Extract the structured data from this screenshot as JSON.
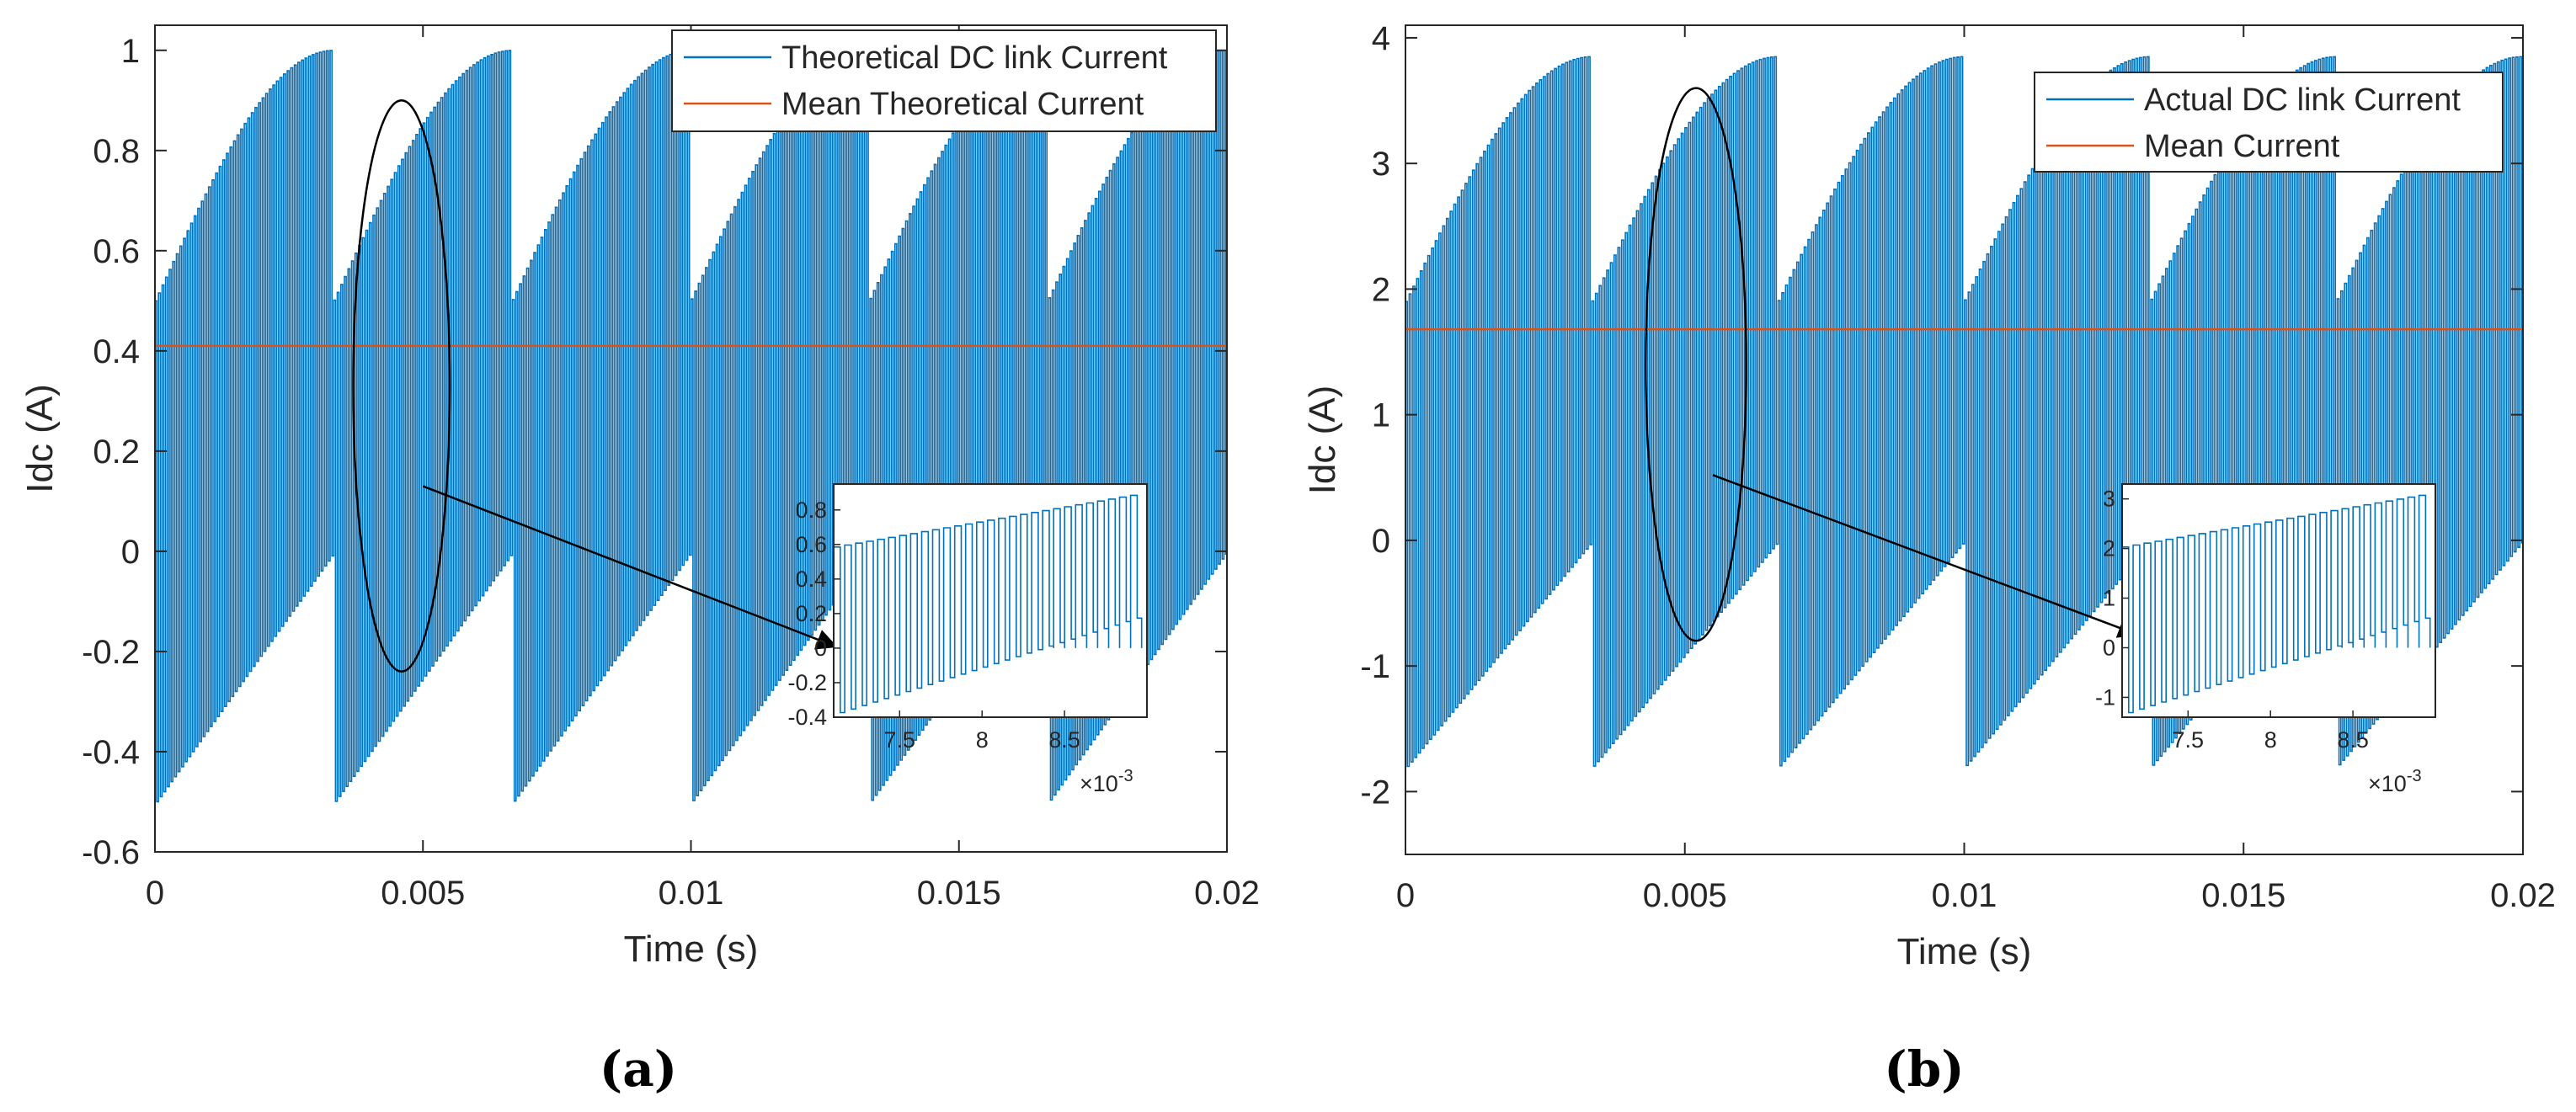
{
  "colors": {
    "signal": "#0072BD",
    "mean": "#D95319",
    "axis": "#262626"
  },
  "chart_data": [
    {
      "type": "line",
      "panel_label": "(a)",
      "xlabel": "Time (s)",
      "ylabel": "Idc (A)",
      "xlim": [
        0,
        0.02
      ],
      "ylim": [
        -0.6,
        1.05
      ],
      "xticks": [
        0,
        0.005,
        0.01,
        0.015,
        0.02
      ],
      "xtick_labels": [
        "0",
        "0.005",
        "0.01",
        "0.015",
        "0.02"
      ],
      "yticks": [
        -0.6,
        -0.4,
        -0.2,
        0,
        0.2,
        0.4,
        0.6,
        0.8,
        1
      ],
      "ytick_labels": [
        "-0.6",
        "-0.4",
        "-0.2",
        "0",
        "0.2",
        "0.4",
        "0.6",
        "0.8",
        "1"
      ],
      "legend": "top-right",
      "series": [
        {
          "name": "Theoretical DC link Current",
          "kind": "pwm",
          "pwm_period": 6.67e-05,
          "envelope_period": 0.00333,
          "pos_min": 0.5,
          "pos_max": 1.0,
          "neg_min": -0.5,
          "neg_max": 0.0
        },
        {
          "name": "Mean Theoretical Current",
          "kind": "constant",
          "value": 0.41
        }
      ],
      "annotation": {
        "ellipse_center": [
          0.0046,
          0.33
        ],
        "ellipse_semi_axes": [
          0.0009,
          0.57
        ],
        "arrow_from": [
          0.005,
          0.13
        ],
        "arrow_to": [
          0.0127,
          -0.19
        ]
      },
      "inset": {
        "xlim": [
          0.0071,
          0.009
        ],
        "ylim": [
          -0.4,
          0.95
        ],
        "xticks": [
          0.0075,
          0.008,
          0.0085
        ],
        "xtick_labels": [
          "7.5",
          "8",
          "8.5"
        ],
        "yticks": [
          -0.4,
          -0.2,
          0,
          0.2,
          0.4,
          0.6,
          0.8
        ],
        "ytick_labels": [
          "-0.4",
          "-0.2",
          "0",
          "0.2",
          "0.4",
          "0.6",
          "0.8"
        ],
        "exponent_label": "×10",
        "exponent_power": "-3"
      }
    },
    {
      "type": "line",
      "panel_label": "(b)",
      "xlabel": "Time (s)",
      "ylabel": "Idc (A)",
      "xlim": [
        0,
        0.02
      ],
      "ylim": [
        -2.5,
        4.1
      ],
      "xticks": [
        0,
        0.005,
        0.01,
        0.015,
        0.02
      ],
      "xtick_labels": [
        "0",
        "0.005",
        "0.01",
        "0.015",
        "0.02"
      ],
      "yticks": [
        -2,
        -1,
        0,
        1,
        2,
        3,
        4
      ],
      "ytick_labels": [
        "-2",
        "-1",
        "0",
        "1",
        "2",
        "3",
        "4"
      ],
      "legend": "top-right",
      "series": [
        {
          "name": "Actual DC link Current",
          "kind": "pwm",
          "pwm_period": 6.67e-05,
          "envelope_period": 0.00333,
          "pos_min": 1.9,
          "pos_max": 3.85,
          "neg_min": -1.8,
          "neg_max": 0.0
        },
        {
          "name": "Mean Current",
          "kind": "constant",
          "value": 1.68
        }
      ],
      "annotation": {
        "ellipse_center": [
          0.0052,
          1.4
        ],
        "ellipse_semi_axes": [
          0.0009,
          2.2
        ],
        "arrow_from": [
          0.0055,
          0.52
        ],
        "arrow_to": [
          0.0131,
          -0.75
        ]
      },
      "inset": {
        "xlim": [
          0.0071,
          0.009
        ],
        "ylim": [
          -1.4,
          3.3
        ],
        "xticks": [
          0.0075,
          0.008,
          0.0085
        ],
        "xtick_labels": [
          "7.5",
          "8",
          "8.5"
        ],
        "yticks": [
          -1,
          0,
          1,
          2,
          3
        ],
        "ytick_labels": [
          "-1",
          "0",
          "1",
          "2",
          "3"
        ],
        "exponent_label": "×10",
        "exponent_power": "-3"
      }
    }
  ]
}
